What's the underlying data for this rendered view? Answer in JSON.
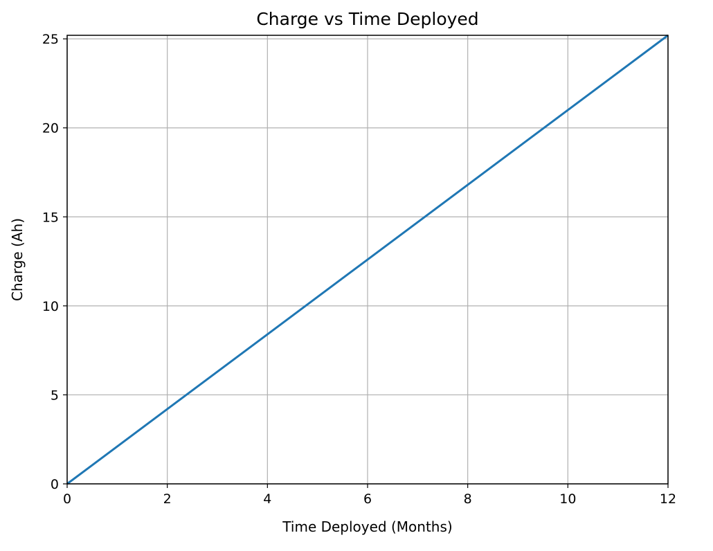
{
  "chart_data": {
    "type": "line",
    "title": "Charge vs Time Deployed",
    "xlabel": "Time Deployed (Months)",
    "ylabel": "Charge (Ah)",
    "xlim": [
      0,
      12
    ],
    "ylim": [
      0,
      25.2
    ],
    "xticks": [
      0,
      2,
      4,
      6,
      8,
      10,
      12
    ],
    "yticks": [
      0,
      5,
      10,
      15,
      20,
      25
    ],
    "grid": true,
    "series": [
      {
        "color": "#1f77b4",
        "x": [
          0,
          12
        ],
        "y": [
          0,
          25.2
        ]
      }
    ]
  }
}
